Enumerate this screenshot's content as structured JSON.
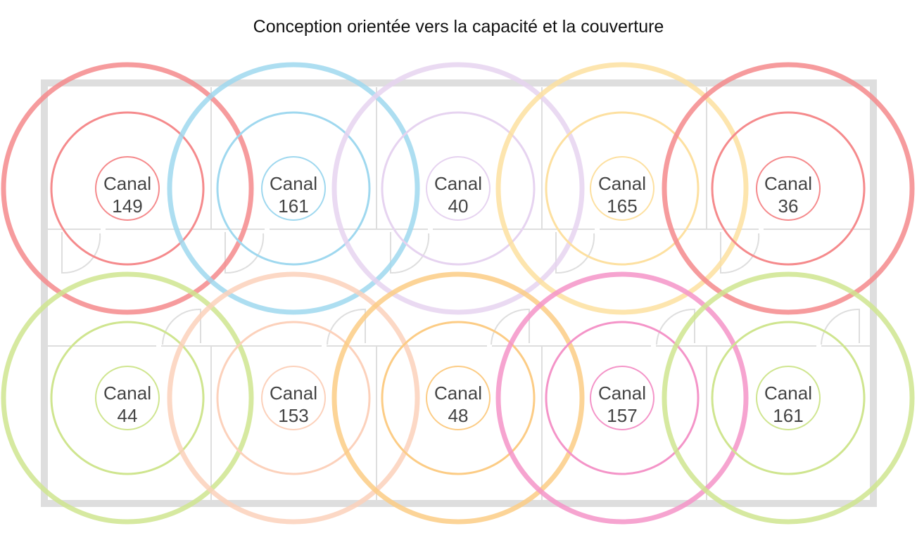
{
  "title": "Conception orientée vers la capacité et la couverture",
  "access_points": [
    {
      "label": "Canal",
      "channel": "149",
      "color": "#f58a8c"
    },
    {
      "label": "Canal",
      "channel": "161",
      "color": "#9fd8ef"
    },
    {
      "label": "Canal",
      "channel": "40",
      "color": "#e6d3f0"
    },
    {
      "label": "Canal",
      "channel": "165",
      "color": "#fde0a0"
    },
    {
      "label": "Canal",
      "channel": "36",
      "color": "#f58a8c"
    },
    {
      "label": "Canal",
      "channel": "44",
      "color": "#cfe58f"
    },
    {
      "label": "Canal",
      "channel": "153",
      "color": "#fcd1bb"
    },
    {
      "label": "Canal",
      "channel": "48",
      "color": "#fccc85"
    },
    {
      "label": "Canal",
      "channel": "157",
      "color": "#f494c8"
    },
    {
      "label": "Canal",
      "channel": "161",
      "color": "#cfe58f"
    }
  ]
}
